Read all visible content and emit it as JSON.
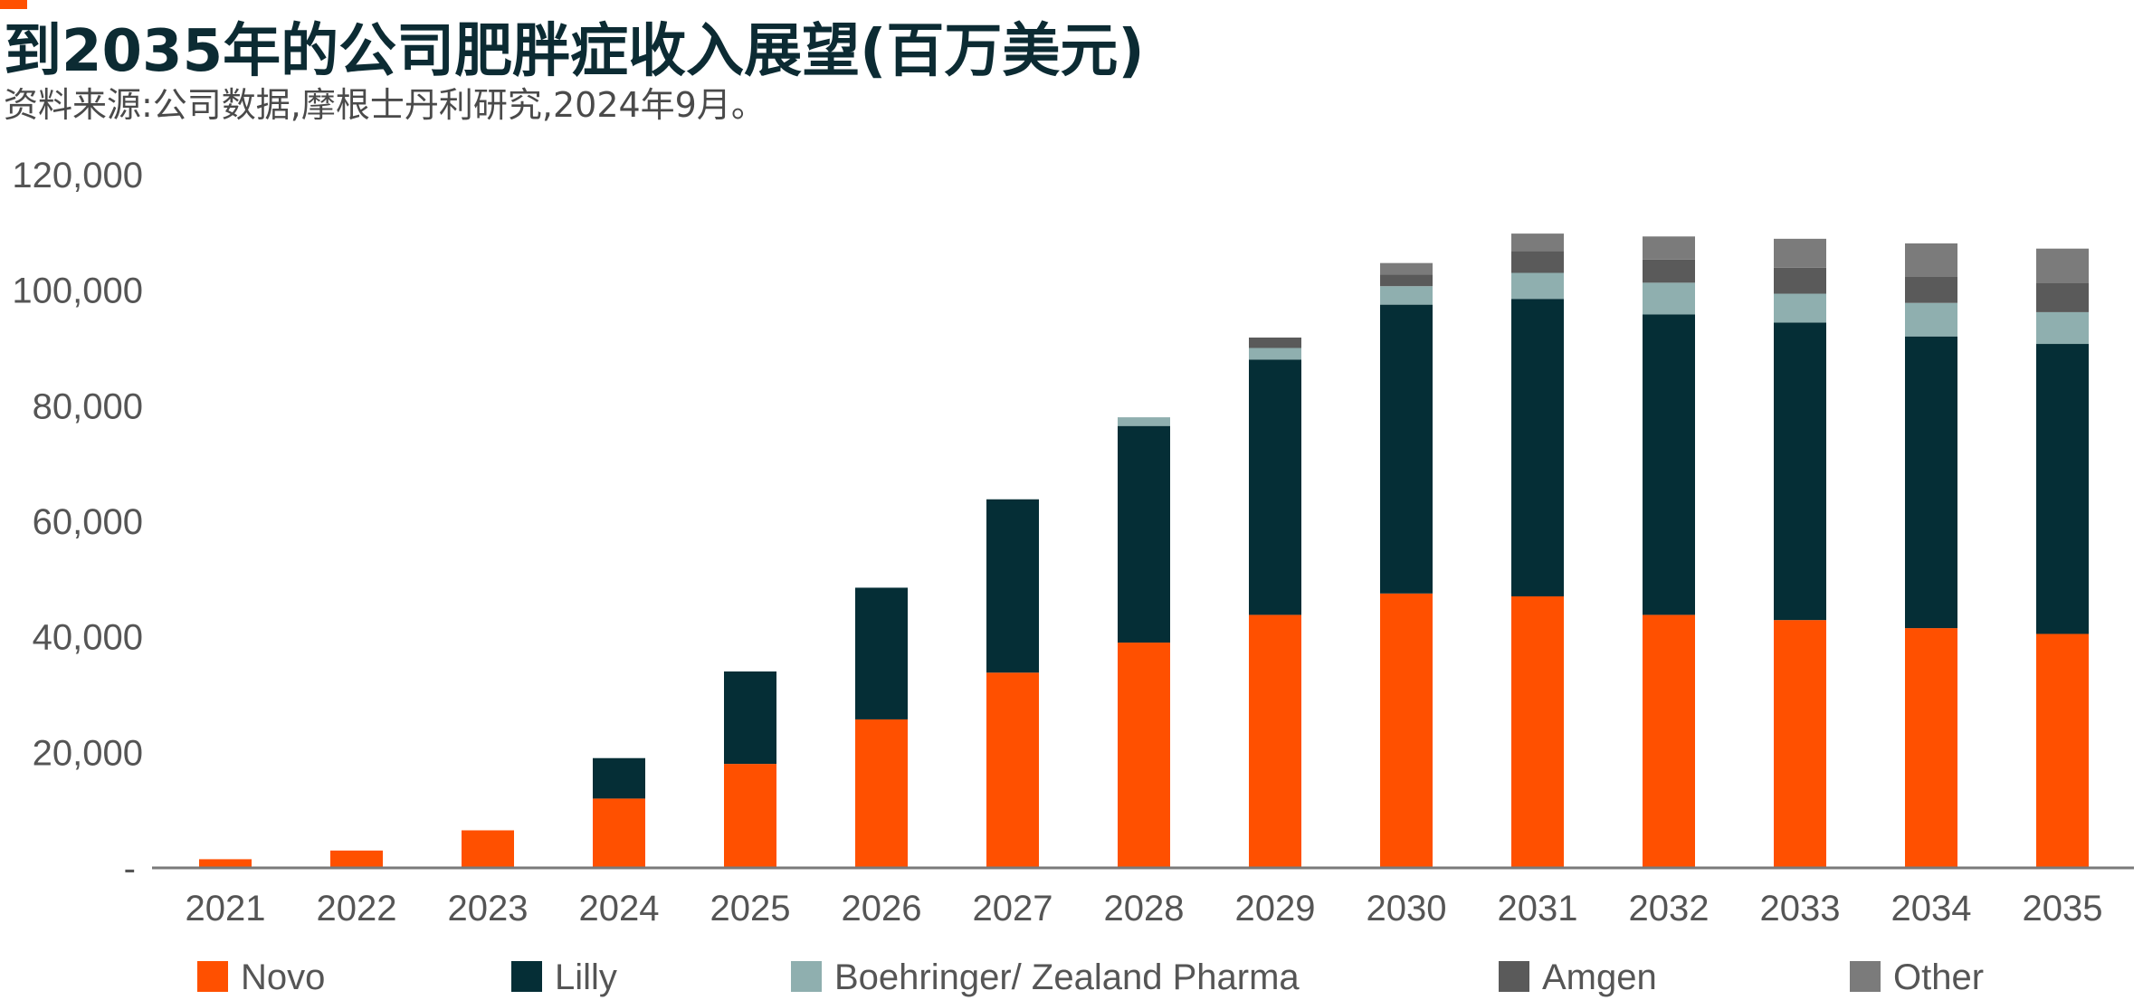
{
  "header": {
    "title": "到2035年的公司肥胖症收入展望(百万美元)",
    "subtitle": "资料来源:公司数据,摩根士丹利研究,2024年9月。"
  },
  "colors": {
    "accent": "#FF5000",
    "title": "#0C2B33",
    "axis_text": "#555555",
    "axis_line": "#7a7a7a"
  },
  "chart_data": {
    "type": "bar",
    "stacked": true,
    "categories": [
      "2021",
      "2022",
      "2023",
      "2024",
      "2025",
      "2026",
      "2027",
      "2028",
      "2029",
      "2030",
      "2031",
      "2032",
      "2033",
      "2034",
      "2035"
    ],
    "ylim": [
      0,
      120000
    ],
    "yticks": [
      0,
      20000,
      40000,
      60000,
      80000,
      100000,
      120000
    ],
    "ytick_labels": [
      "-",
      "20,000",
      "40,000",
      "60,000",
      "80,000",
      "100,000",
      "120,000"
    ],
    "grid": false,
    "legend_position": "bottom",
    "series": [
      {
        "name": "Novo",
        "color": "#FF5000",
        "values": [
          1500,
          3000,
          6500,
          12000,
          18000,
          25700,
          33800,
          39000,
          43800,
          47500,
          47000,
          43800,
          42900,
          41500,
          40500
        ]
      },
      {
        "name": "Lilly",
        "color": "#052E36",
        "values": [
          0,
          0,
          0,
          7000,
          16000,
          22800,
          30000,
          37500,
          44200,
          50000,
          51500,
          52000,
          51500,
          50500,
          50200
        ]
      },
      {
        "name": "Boehringer/ Zealand Pharma",
        "color": "#8FAFAF",
        "values": [
          0,
          0,
          0,
          0,
          0,
          0,
          0,
          1500,
          2000,
          3200,
          4500,
          5500,
          5000,
          5800,
          5500
        ]
      },
      {
        "name": "Amgen",
        "color": "#5A5A5A",
        "values": [
          0,
          0,
          0,
          0,
          0,
          0,
          0,
          0,
          1800,
          2000,
          3800,
          4000,
          4500,
          4500,
          5000
        ]
      },
      {
        "name": "Other",
        "color": "#7B7B7B",
        "values": [
          0,
          0,
          0,
          0,
          0,
          0,
          0,
          0,
          0,
          2000,
          3000,
          4000,
          5000,
          5800,
          6000
        ]
      }
    ]
  }
}
